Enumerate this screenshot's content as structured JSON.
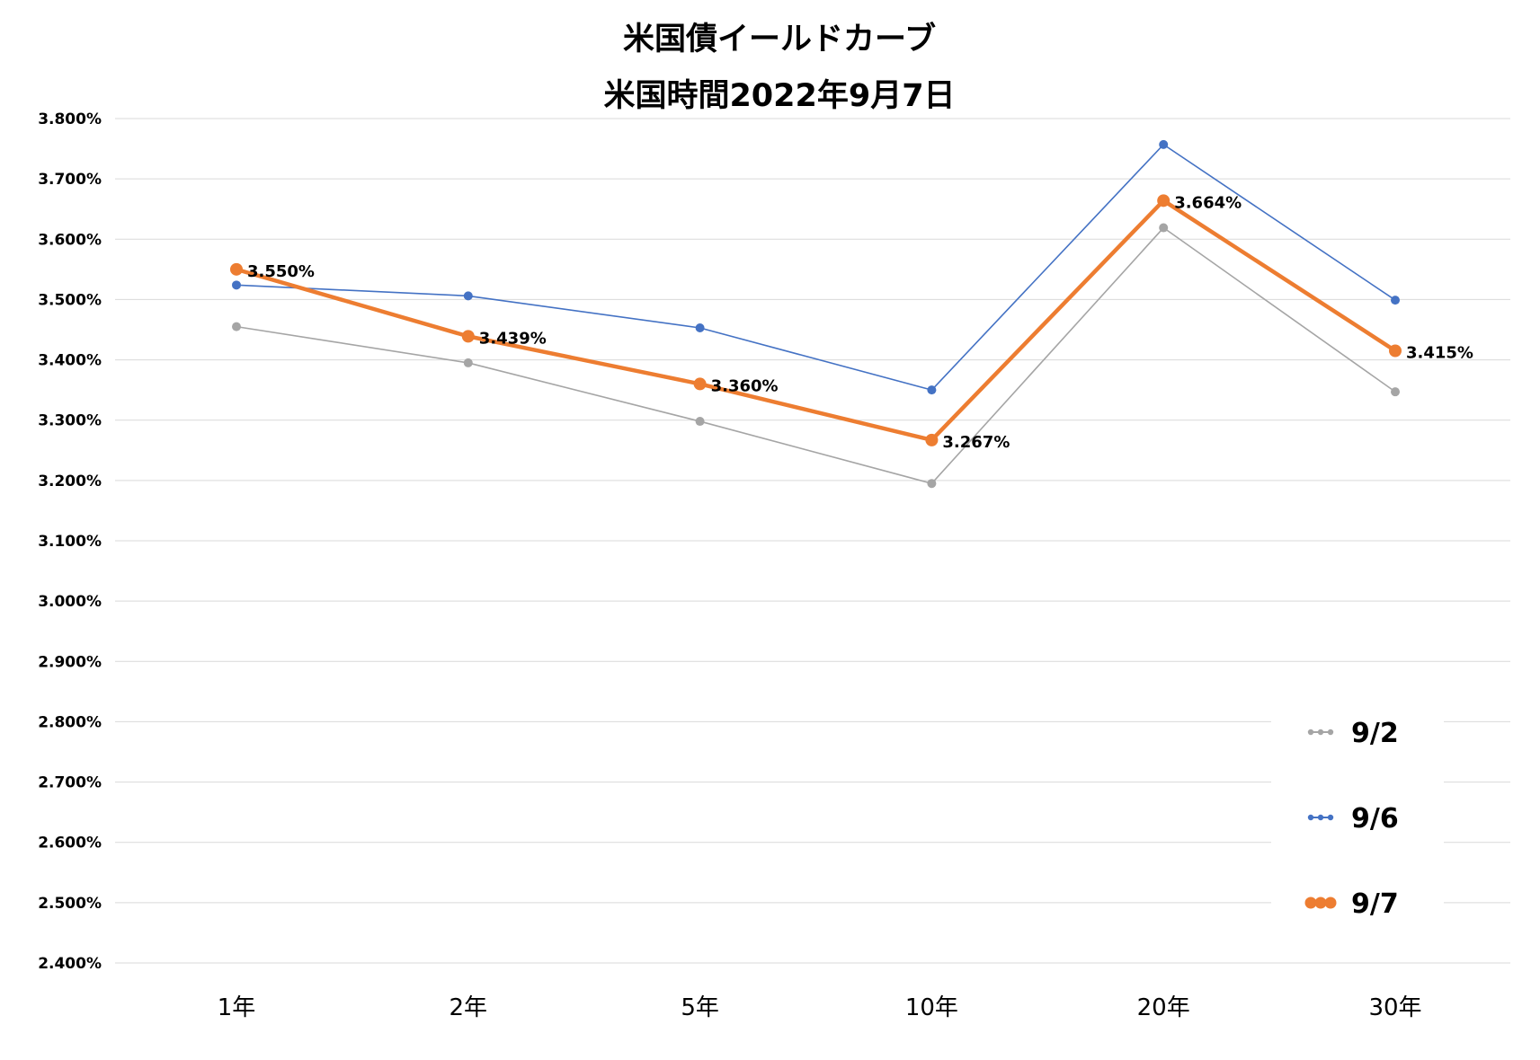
{
  "chart_data": {
    "type": "line",
    "title": "米国債イールドカーブ",
    "subtitle": "米国時間2022年9月7日",
    "categories": [
      "1年",
      "2年",
      "5年",
      "10年",
      "20年",
      "30年"
    ],
    "ylim": [
      2.4,
      3.8
    ],
    "y_ticks": [
      "3.800%",
      "3.700%",
      "3.600%",
      "3.500%",
      "3.400%",
      "3.300%",
      "3.200%",
      "3.100%",
      "3.000%",
      "2.900%",
      "2.800%",
      "2.700%",
      "2.600%",
      "2.500%",
      "2.400%"
    ],
    "grid": true,
    "legend_position": "bottom-right",
    "series": [
      {
        "name": "9/2",
        "color": "#a5a5a5",
        "values": [
          3.455,
          3.395,
          3.298,
          3.195,
          3.619,
          3.347
        ]
      },
      {
        "name": "9/6",
        "color": "#4472c4",
        "values": [
          3.524,
          3.506,
          3.453,
          3.35,
          3.757,
          3.499
        ]
      },
      {
        "name": "9/7",
        "color": "#ed7d31",
        "values": [
          3.55,
          3.439,
          3.36,
          3.267,
          3.664,
          3.415
        ],
        "data_labels": [
          "3.550%",
          "3.439%",
          "3.360%",
          "3.267%",
          "3.664%",
          "3.415%"
        ]
      }
    ]
  }
}
